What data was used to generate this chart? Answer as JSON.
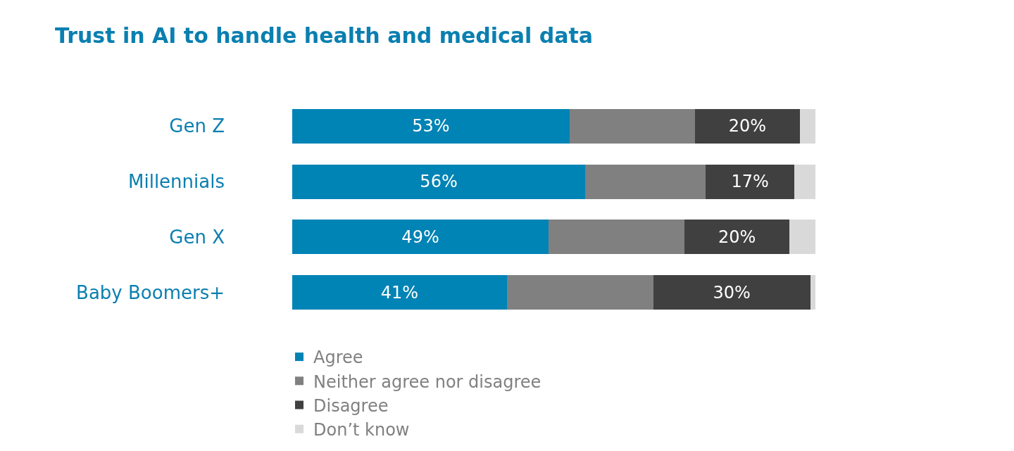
{
  "chart_data": {
    "type": "bar",
    "orientation": "horizontal",
    "stacked": true,
    "title": "Trust in AI to handle health and medical data",
    "categories": [
      "Gen Z",
      "Millennials",
      "Gen X",
      "Baby Boomers+"
    ],
    "series": [
      {
        "name": "Agree",
        "color": "#0083b5",
        "values": [
          53,
          56,
          49,
          41
        ],
        "value_labels": [
          "53%",
          "56%",
          "49%",
          "41%"
        ]
      },
      {
        "name": "Neither agree nor disagree",
        "color": "#808080",
        "values": [
          24,
          23,
          26,
          28
        ],
        "value_labels": [
          null,
          null,
          null,
          null
        ]
      },
      {
        "name": "Disagree",
        "color": "#404040",
        "values": [
          20,
          17,
          20,
          30
        ],
        "value_labels": [
          "20%",
          "17%",
          "20%",
          "30%"
        ]
      },
      {
        "name": "Don’t know",
        "color": "#d9d9d9",
        "values": [
          3,
          4,
          5,
          1
        ],
        "value_labels": [
          null,
          null,
          null,
          null
        ]
      }
    ],
    "xlim": [
      0,
      100
    ],
    "tick_labels": "y",
    "legend": "bottom"
  }
}
